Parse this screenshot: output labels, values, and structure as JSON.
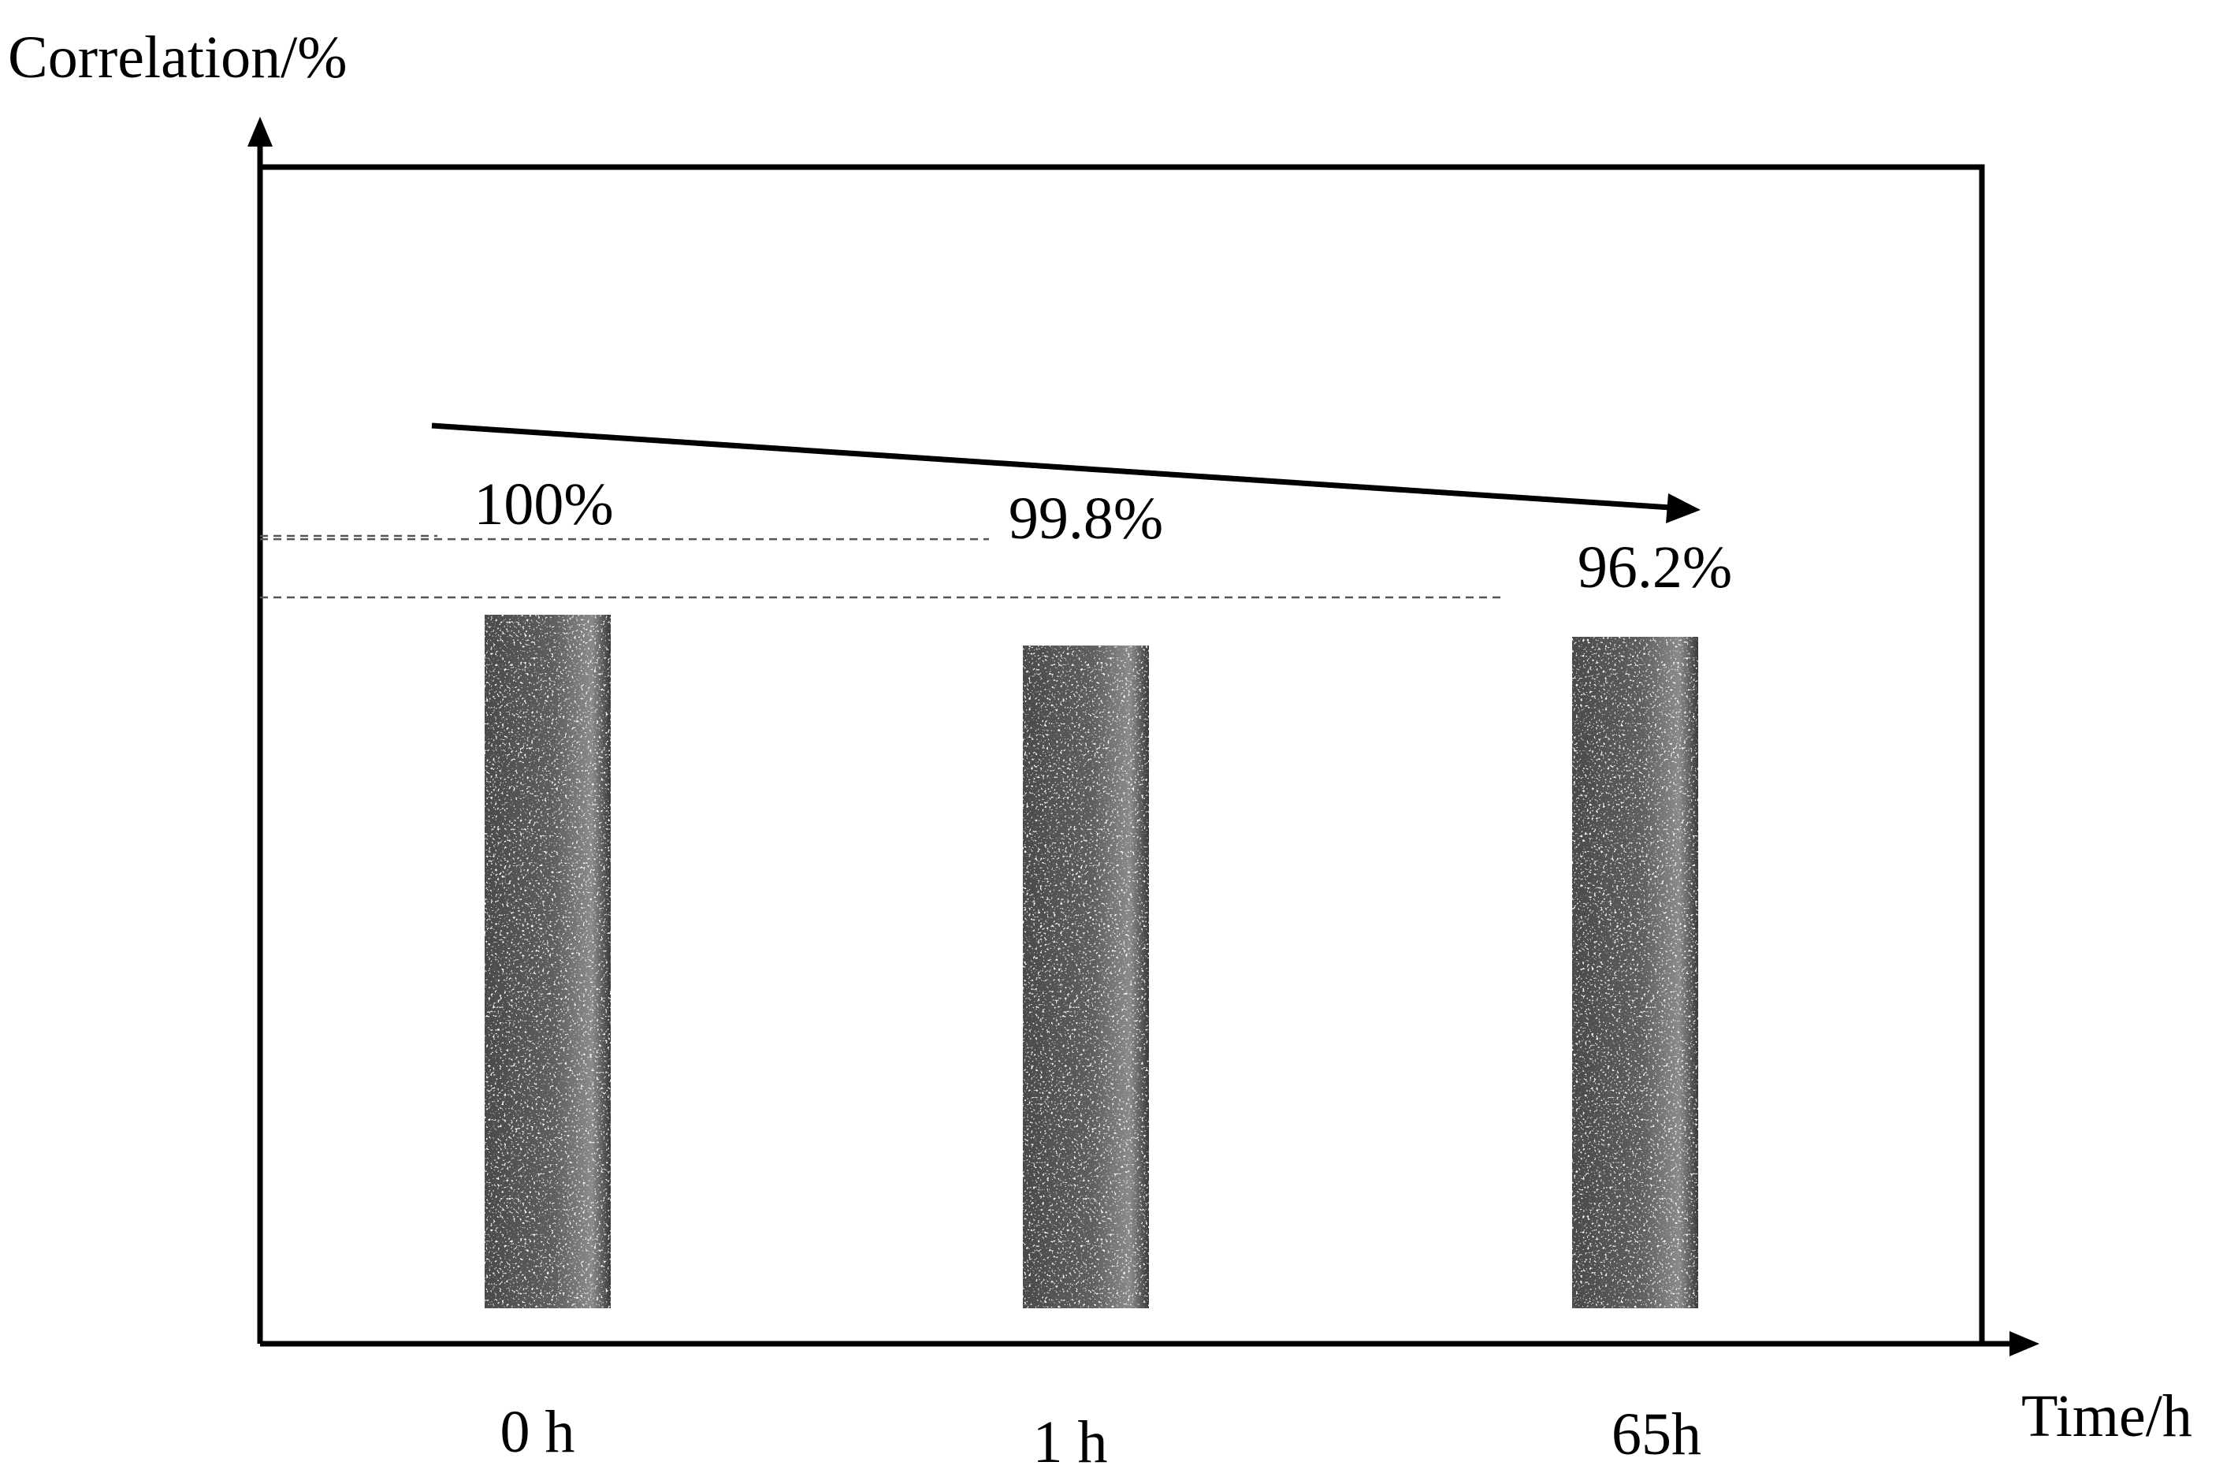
{
  "chart_data": {
    "type": "bar",
    "ylabel": "Correlation/%",
    "xlabel": "Time/h",
    "categories": [
      "0 h",
      "1 h",
      "65h"
    ],
    "values": [
      100,
      99.8,
      96.2
    ],
    "value_labels": [
      "100%",
      "99.8%",
      "96.2%"
    ],
    "bar_style": "speckle-pattern-image-columns",
    "reference_lines": "dashed",
    "trend_arrow": "decreasing",
    "grid": false,
    "legend": "none"
  }
}
